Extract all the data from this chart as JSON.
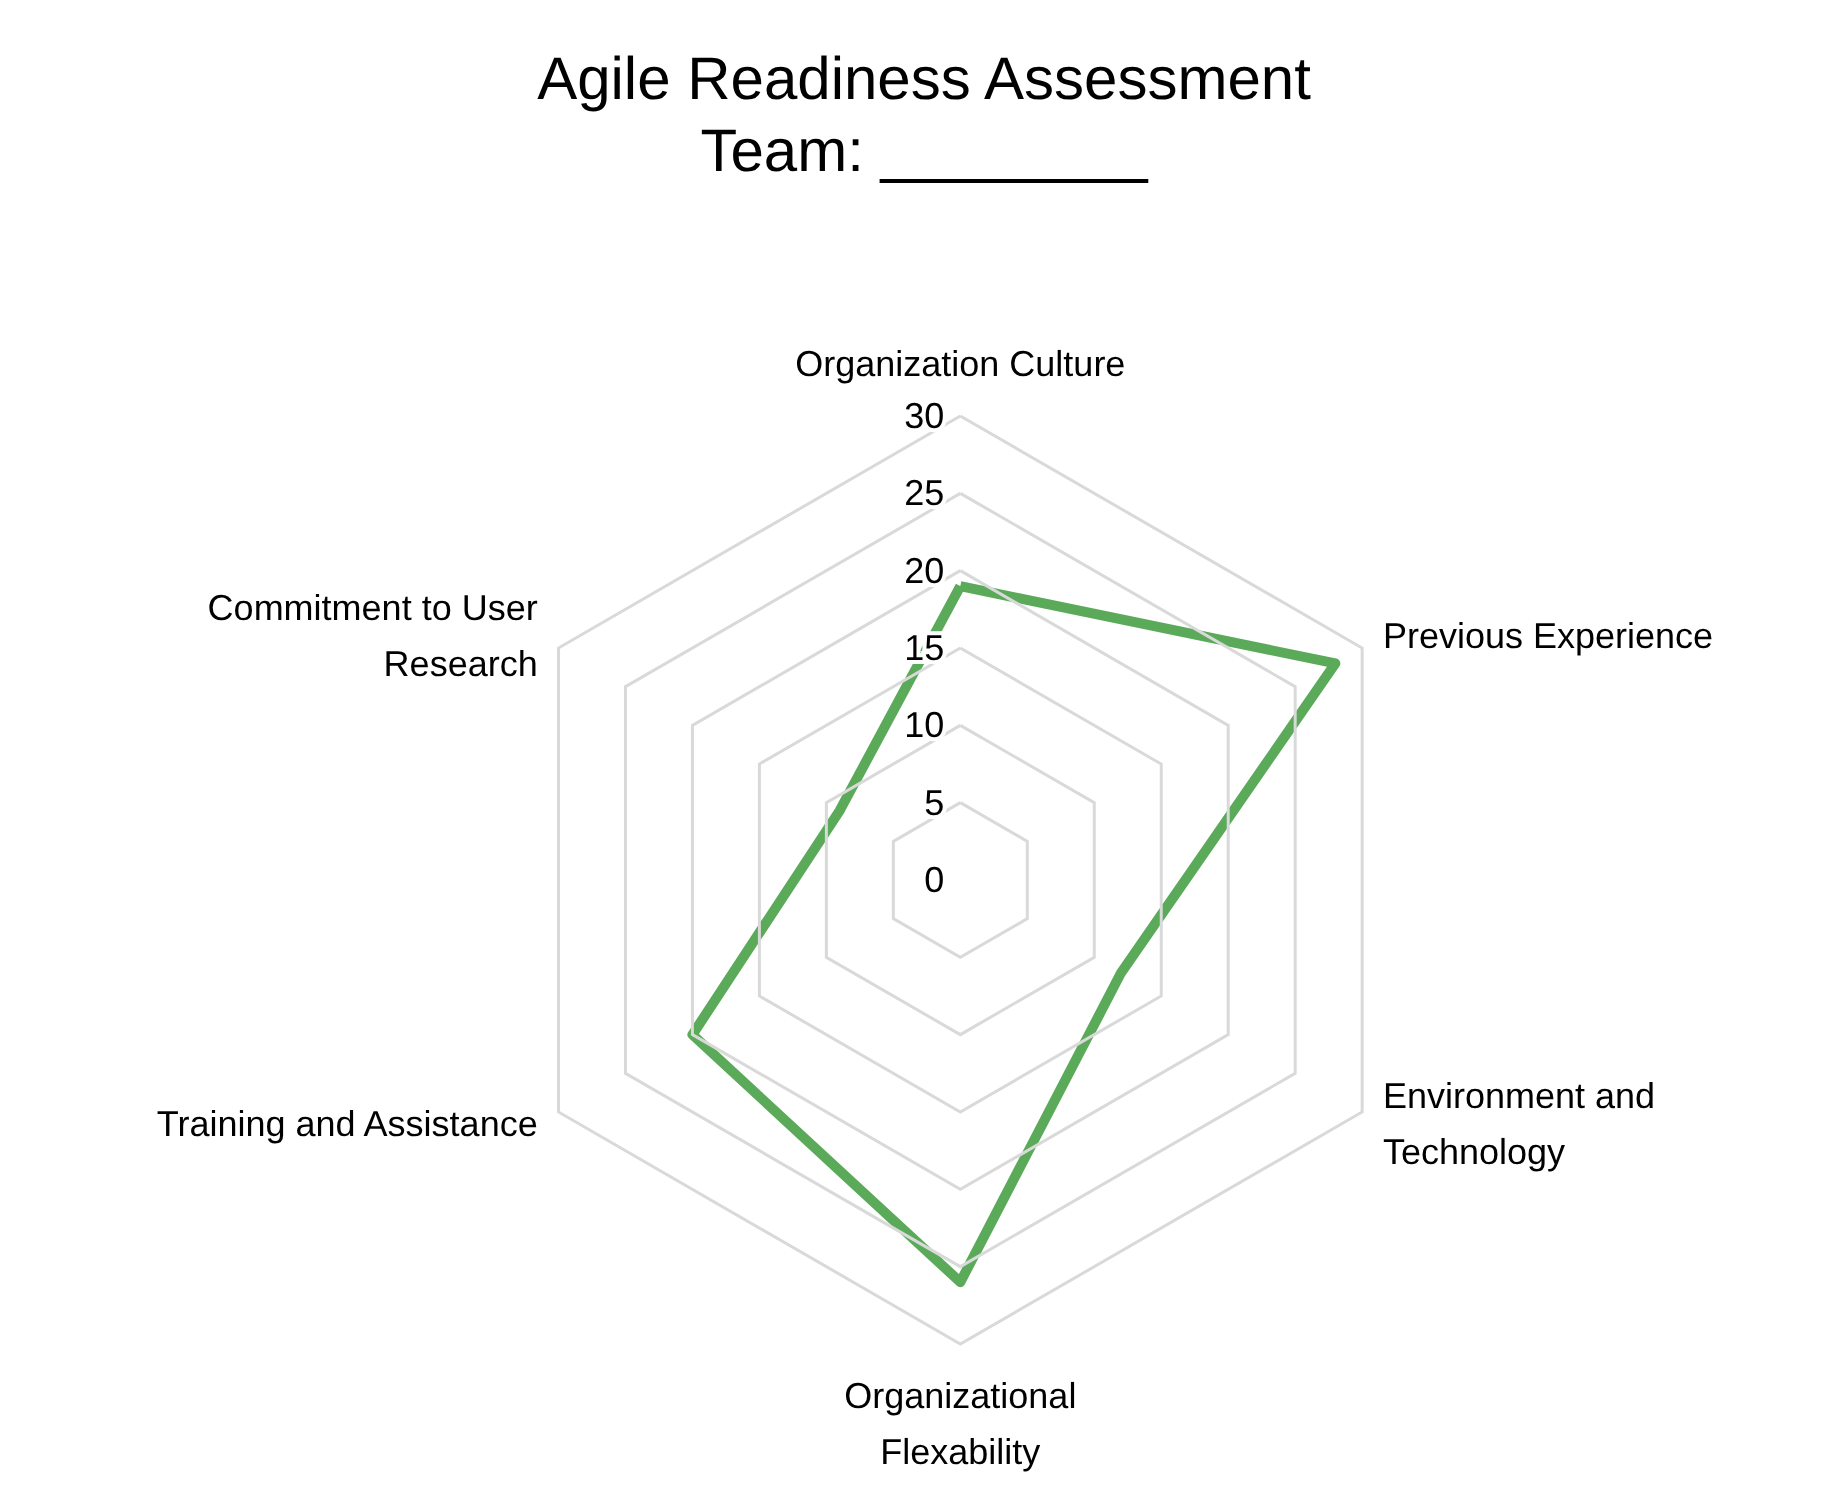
{
  "chart_data": {
    "type": "radar",
    "title": "Agile Readiness Assessment",
    "subtitle": "Team: ________",
    "categories": [
      "Organization Culture",
      "Previous Experience",
      "Environment and\nTechnology",
      "Organizational\nFlexability",
      "Training and Assistance",
      "Commitment to User\nResearch"
    ],
    "series": [
      {
        "color": "#5aaa5a",
        "values": [
          19,
          28,
          12,
          26,
          20,
          9
        ]
      }
    ],
    "ylim": [
      0,
      30
    ],
    "yticks": [
      0,
      5,
      10,
      15,
      20,
      25,
      30
    ],
    "grid": true,
    "legend": false,
    "marker": "none",
    "line_style": "solid"
  }
}
